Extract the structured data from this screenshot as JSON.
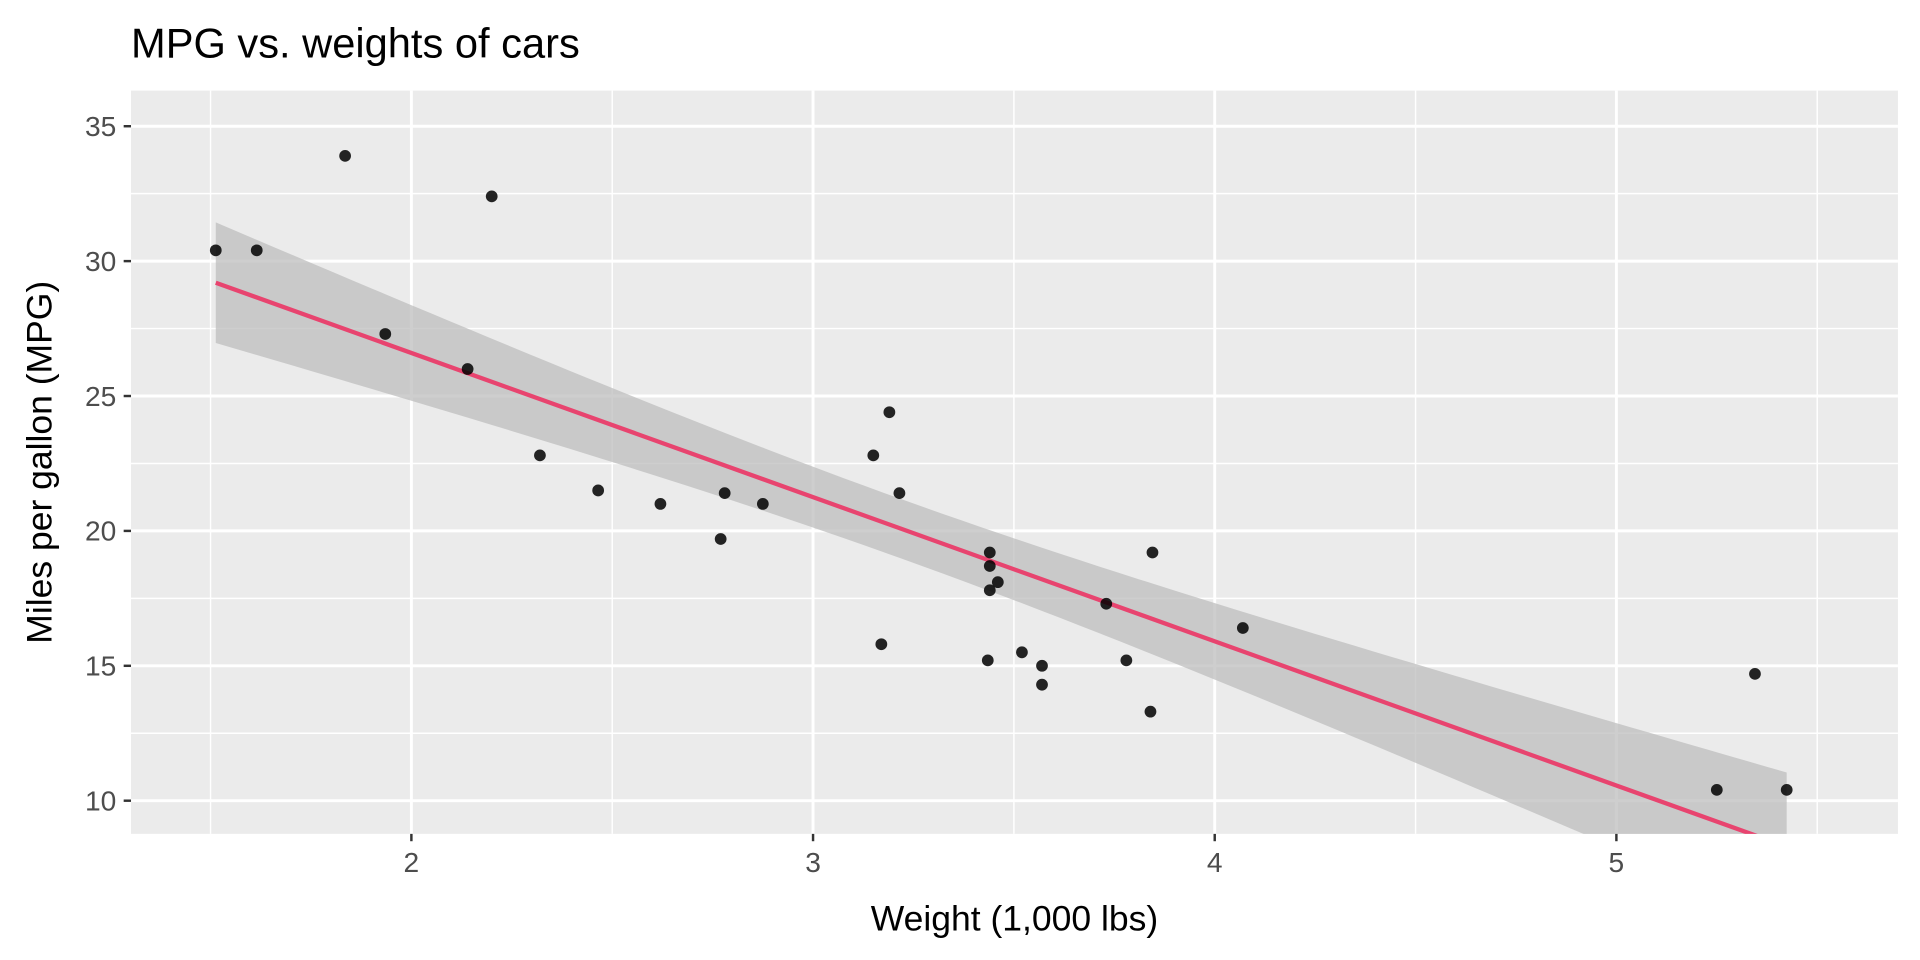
{
  "chart_data": {
    "type": "scatter",
    "title": "MPG vs. weights of cars",
    "xlabel": "Weight (1,000 lbs)",
    "ylabel": "Miles per gallon (MPG)",
    "xlim": [
      1.302,
      5.701
    ],
    "ylim": [
      8.77,
      36.32
    ],
    "xticks": [
      2,
      3,
      4,
      5
    ],
    "yticks": [
      10,
      15,
      20,
      25,
      30,
      35
    ],
    "grid": true,
    "colors": {
      "panel": "#EBEBEB",
      "grid": "#FFFFFF",
      "point": "#000000",
      "fit_line": "#E8446F",
      "ribbon": "#BEBEBE"
    },
    "points": [
      [
        2.62,
        21.0
      ],
      [
        2.875,
        21.0
      ],
      [
        2.32,
        22.8
      ],
      [
        3.215,
        21.4
      ],
      [
        3.44,
        18.7
      ],
      [
        3.46,
        18.1
      ],
      [
        3.57,
        14.3
      ],
      [
        3.19,
        24.4
      ],
      [
        3.15,
        22.8
      ],
      [
        3.44,
        19.2
      ],
      [
        3.44,
        17.8
      ],
      [
        4.07,
        16.4
      ],
      [
        3.73,
        17.3
      ],
      [
        3.78,
        15.2
      ],
      [
        5.25,
        10.4
      ],
      [
        5.424,
        10.4
      ],
      [
        5.345,
        14.7
      ],
      [
        2.2,
        32.4
      ],
      [
        1.615,
        30.4
      ],
      [
        1.835,
        33.9
      ],
      [
        2.465,
        21.5
      ],
      [
        3.52,
        15.5
      ],
      [
        3.435,
        15.2
      ],
      [
        3.84,
        13.3
      ],
      [
        3.845,
        19.2
      ],
      [
        1.935,
        27.3
      ],
      [
        2.14,
        26.0
      ],
      [
        1.513,
        30.4
      ],
      [
        3.17,
        15.8
      ],
      [
        2.77,
        19.7
      ],
      [
        3.57,
        15.0
      ],
      [
        2.78,
        21.4
      ]
    ],
    "fit": {
      "method": "lm",
      "intercept": 37.285,
      "slope": -5.344,
      "se_confidence": 0.95
    }
  }
}
